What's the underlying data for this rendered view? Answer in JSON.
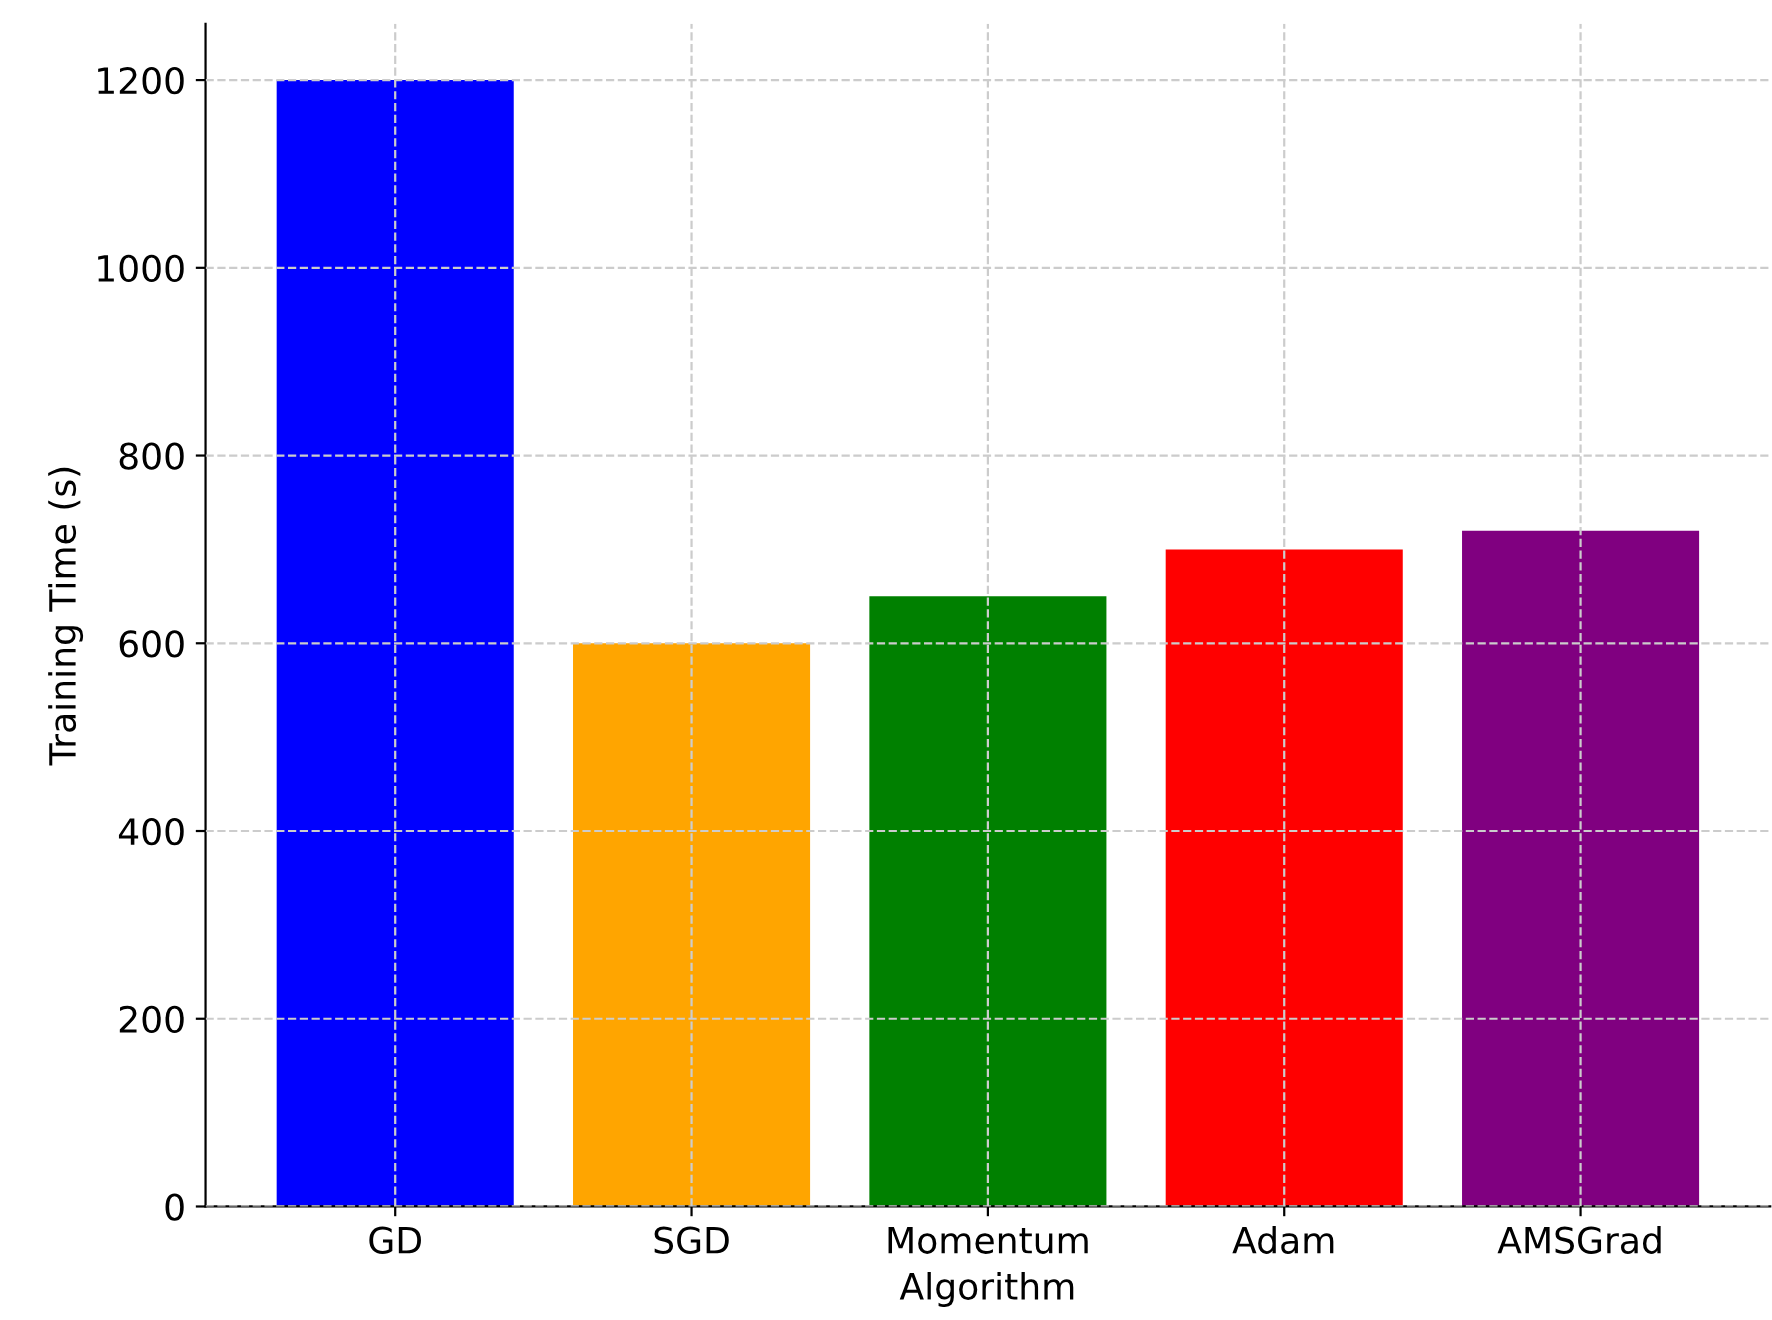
{
  "chart_data": {
    "type": "bar",
    "xlabel": "Algorithm",
    "ylabel": "Training Time (s)",
    "categories": [
      "GD",
      "SGD",
      "Momentum",
      "Adam",
      "AMSGrad"
    ],
    "values": [
      1200,
      600,
      650,
      700,
      720
    ],
    "colors": [
      "#0000ff",
      "#ffa500",
      "#008000",
      "#ff0000",
      "#800080"
    ],
    "ylim": [
      0,
      1260
    ],
    "yticks": [
      0,
      200,
      400,
      600,
      800,
      1000,
      1200
    ],
    "grid": true,
    "line_style": "dashed"
  }
}
